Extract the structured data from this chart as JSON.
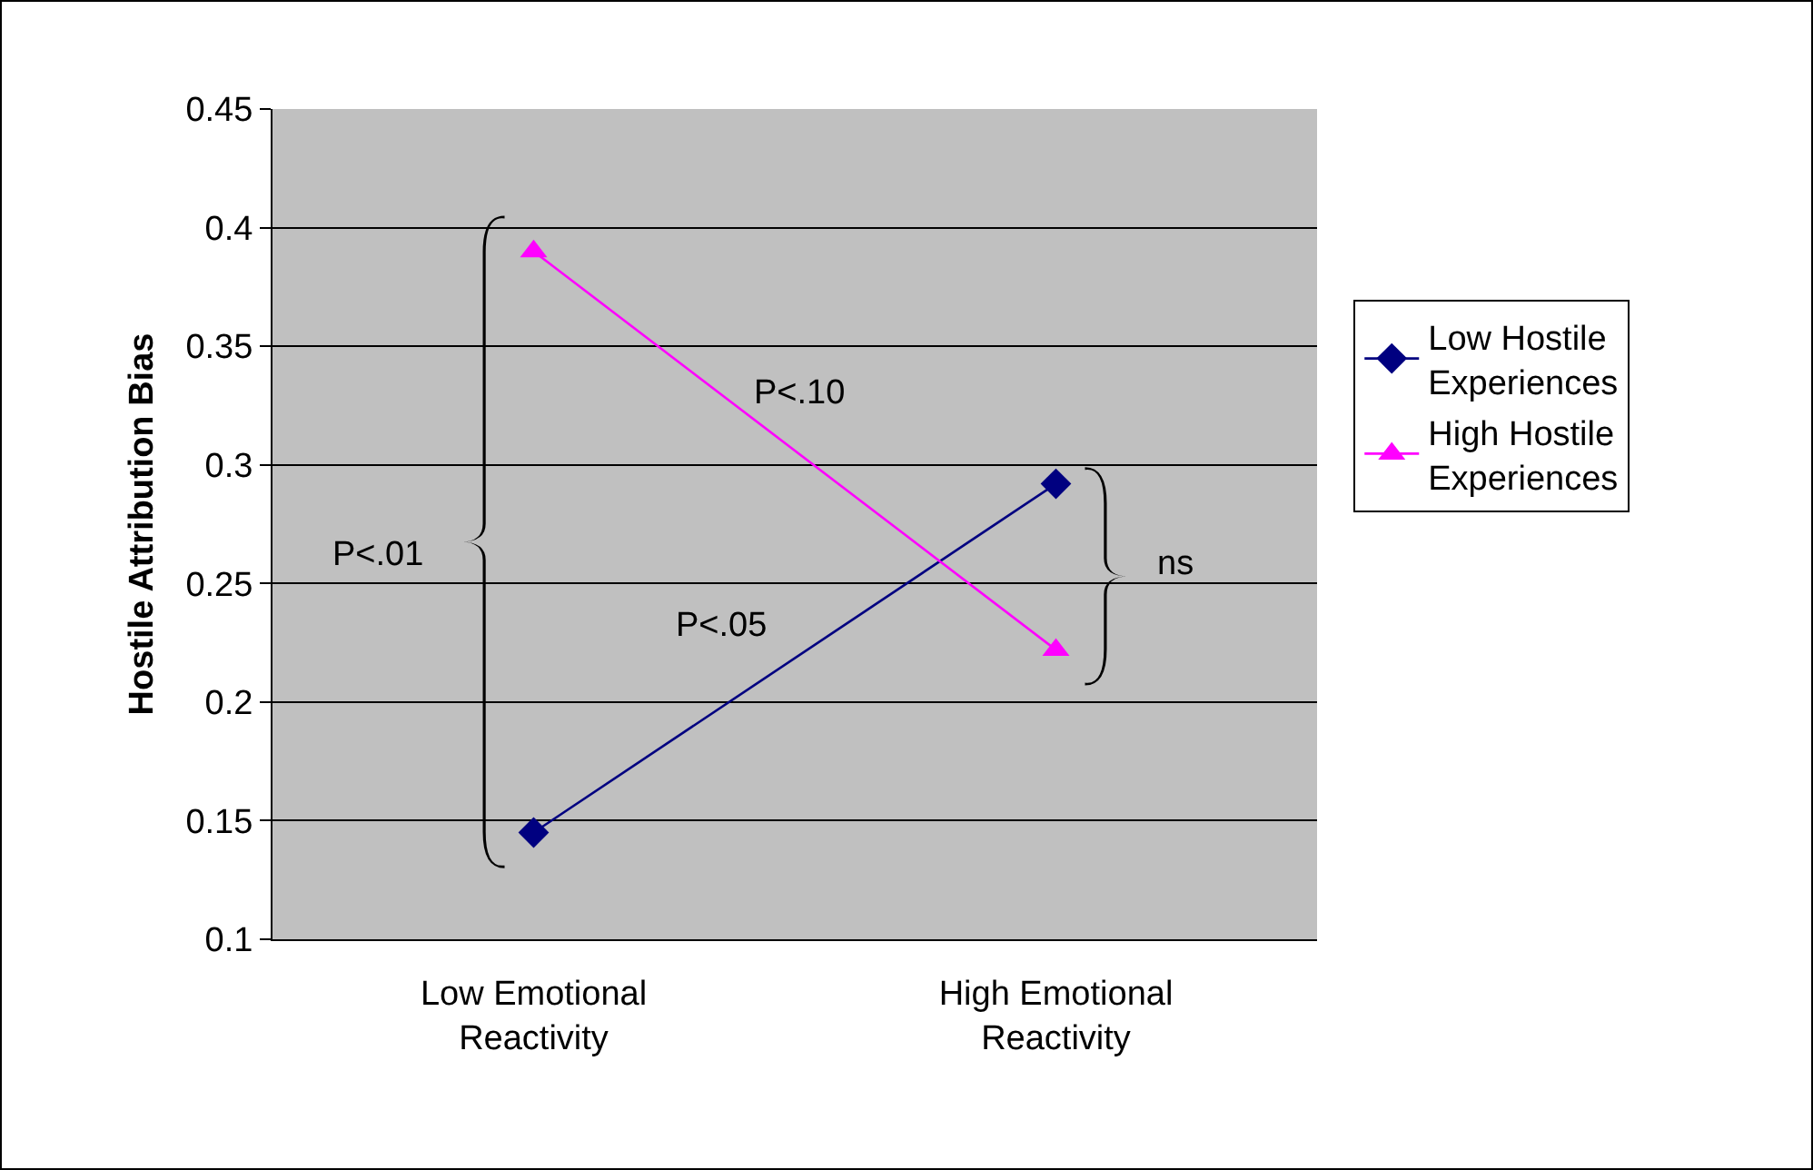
{
  "chart_data": {
    "type": "line",
    "ylabel": "Hostile Attribution Bias",
    "categories": [
      "Low Emotional Reactivity",
      "High Emotional Reactivity"
    ],
    "series": [
      {
        "name": "Low Hostile Experiences",
        "color": "#000080",
        "values": [
          0.145,
          0.292
        ],
        "marker": "diamond"
      },
      {
        "name": "High Hostile Experiences",
        "color": "#ff00ff",
        "values": [
          0.39,
          0.222
        ],
        "marker": "triangle"
      }
    ],
    "ylim": [
      0.1,
      0.45
    ],
    "yticks": [
      0.1,
      0.15,
      0.2,
      0.25,
      0.3,
      0.35,
      0.4,
      0.45
    ],
    "grid": "y",
    "legend": "right",
    "line_style": "solid",
    "annotations": [
      "P<.01",
      "P<.10",
      "P<.05",
      "ns"
    ]
  }
}
